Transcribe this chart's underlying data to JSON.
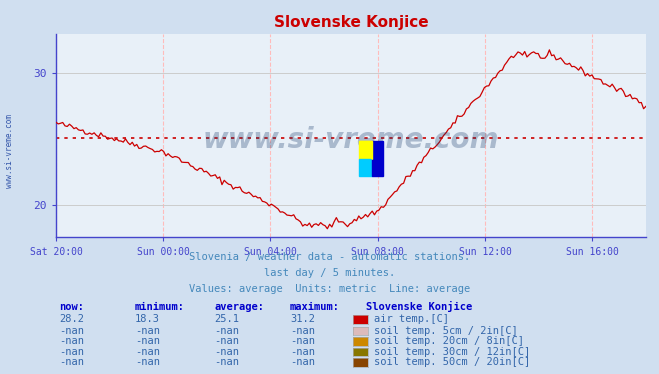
{
  "title": "Slovenske Konjice",
  "background_color": "#d0dff0",
  "plot_bg_color": "#e8f0f8",
  "title_color": "#cc0000",
  "axis_color": "#4444cc",
  "grid_color_h": "#cccccc",
  "grid_color_v": "#ffaaaa",
  "line_color": "#cc0000",
  "avg_line_color": "#cc0000",
  "avg_value": 25.1,
  "y_min": 17.5,
  "y_max": 33.0,
  "y_ticks": [
    20,
    30
  ],
  "x_tick_labels": [
    "Sat 20:00",
    "Sun 00:00",
    "Sun 04:00",
    "Sun 08:00",
    "Sun 12:00",
    "Sun 16:00"
  ],
  "subtitle1": "Slovenia / weather data - automatic stations.",
  "subtitle2": "last day / 5 minutes.",
  "subtitle3": "Values: average  Units: metric  Line: average",
  "subtitle_color": "#4488bb",
  "table_headers": [
    "now:",
    "minimum:",
    "average:",
    "maximum:",
    "Slovenske Konjice"
  ],
  "table_header_color": "#0000cc",
  "table_data_color": "#3366aa",
  "table_rows": [
    {
      "now": "28.2",
      "min": "18.3",
      "avg": "25.1",
      "max": "31.2",
      "color": "#cc0000",
      "label": "air temp.[C]"
    },
    {
      "now": "-nan",
      "min": "-nan",
      "avg": "-nan",
      "max": "-nan",
      "color": "#ddbbbb",
      "label": "soil temp. 5cm / 2in[C]"
    },
    {
      "now": "-nan",
      "min": "-nan",
      "avg": "-nan",
      "max": "-nan",
      "color": "#cc8800",
      "label": "soil temp. 20cm / 8in[C]"
    },
    {
      "now": "-nan",
      "min": "-nan",
      "avg": "-nan",
      "max": "-nan",
      "color": "#887700",
      "label": "soil temp. 30cm / 12in[C]"
    },
    {
      "now": "-nan",
      "min": "-nan",
      "avg": "-nan",
      "max": "-nan",
      "color": "#884400",
      "label": "soil temp. 50cm / 20in[C]"
    }
  ],
  "watermark": "www.si-vreme.com",
  "watermark_color": "#1a3a6a",
  "logo_colors": [
    "#ffff00",
    "#00ccff",
    "#0000cc"
  ]
}
